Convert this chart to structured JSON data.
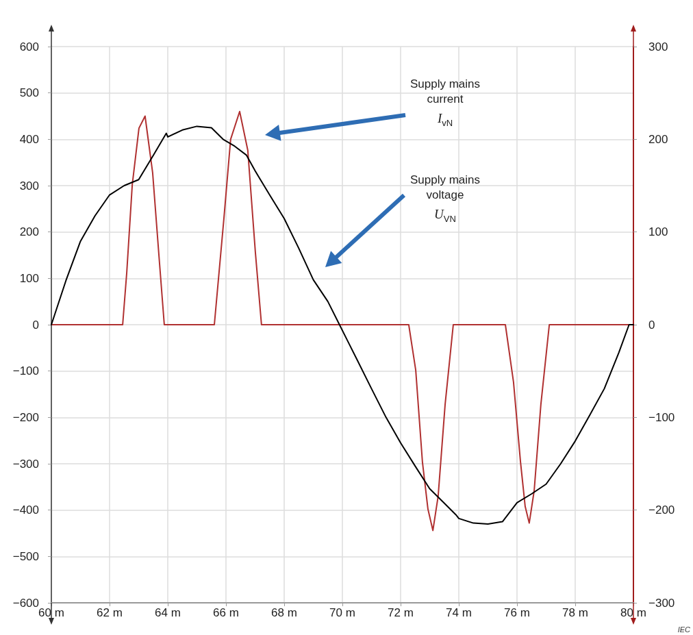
{
  "chart_data": {
    "type": "line",
    "series": [
      {
        "color": "#000000",
        "x": [
          60,
          60.5,
          61,
          61.5,
          62,
          62.5,
          63,
          63.5,
          63.95,
          64.0,
          64.5,
          65,
          65.5,
          65.9,
          66.3,
          66.7,
          67,
          67.5,
          68,
          68.5,
          69,
          69.5,
          69.9,
          70.5,
          71,
          71.5,
          72,
          72.5,
          73,
          73.5,
          73.9,
          74.0,
          74.5,
          75,
          75.5,
          76,
          76.5,
          77,
          77.5,
          78,
          78.5,
          79,
          79.5,
          79.85,
          80
        ],
        "values": [
          0,
          95,
          180,
          235,
          280,
          300,
          313,
          365,
          413,
          405,
          420,
          428,
          425,
          400,
          385,
          366,
          332,
          280,
          229,
          165,
          97,
          50,
          0,
          -75,
          -138,
          -200,
          -255,
          -305,
          -354,
          -385,
          -410,
          -418,
          -428,
          -430,
          -425,
          -384,
          -365,
          -344,
          -300,
          -251,
          -195,
          -138,
          -60,
          0,
          0
        ]
      },
      {
        "color": "#b03030",
        "axis": "y2",
        "x": [
          60,
          62.45,
          62.59,
          62.78,
          63.01,
          63.22,
          63.48,
          63.72,
          63.88,
          65.6,
          65.93,
          66.16,
          66.47,
          66.75,
          67.01,
          67.22,
          72.28,
          72.52,
          72.75,
          72.94,
          73.11,
          73.29,
          73.53,
          73.81,
          75.6,
          75.88,
          76.12,
          76.28,
          76.42,
          76.59,
          76.82,
          77.11,
          80
        ],
        "values": [
          0,
          0,
          56,
          151,
          212,
          225,
          164,
          65,
          0,
          0,
          115,
          200,
          230,
          188,
          78,
          0,
          0,
          -49,
          -148,
          -199,
          -222,
          -185,
          -86,
          0,
          0,
          -62,
          -148,
          -196,
          -214,
          -179,
          -86,
          0,
          0
        ]
      }
    ],
    "xlim": [
      60,
      80
    ],
    "xticks": [
      {
        "value": 60,
        "label": "60 m"
      },
      {
        "value": 62,
        "label": "62 m"
      },
      {
        "value": 64,
        "label": "64 m"
      },
      {
        "value": 66,
        "label": "66 m"
      },
      {
        "value": 68,
        "label": "68 m"
      },
      {
        "value": 70,
        "label": "70 m"
      },
      {
        "value": 72,
        "label": "72 m"
      },
      {
        "value": 74,
        "label": "74 m"
      },
      {
        "value": 76,
        "label": "76 m"
      },
      {
        "value": 78,
        "label": "78 m"
      },
      {
        "value": 80,
        "label": "80 m"
      }
    ],
    "ylim": [
      -600,
      600
    ],
    "yticks": [
      -600,
      -500,
      -400,
      -300,
      -200,
      -100,
      0,
      100,
      200,
      300,
      400,
      500,
      600
    ],
    "y2lim": [
      -300,
      300
    ],
    "y2ticks": [
      -300,
      -200,
      -100,
      0,
      100,
      200,
      300
    ],
    "grid": true,
    "marker": "none",
    "line_style": "solid",
    "annotations": [
      "Supply mains current I$_{vN}$",
      "Supply mains voltage U$_{VN}$",
      "IEC"
    ]
  }
}
